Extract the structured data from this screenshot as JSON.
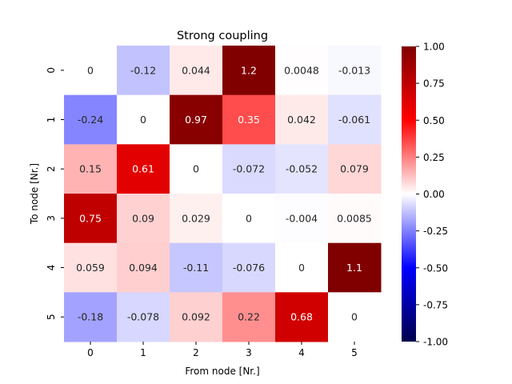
{
  "chart_data": {
    "type": "heatmap",
    "title": "Strong coupling",
    "xlabel": "From node [Nr.]",
    "ylabel": "To node [Nr.]",
    "x_categories": [
      "0",
      "1",
      "2",
      "3",
      "4",
      "5"
    ],
    "y_categories": [
      "0",
      "1",
      "2",
      "3",
      "4",
      "5"
    ],
    "values": [
      [
        0,
        -0.12,
        0.044,
        1.2,
        0.0048,
        -0.013
      ],
      [
        -0.24,
        0,
        0.97,
        0.35,
        0.042,
        -0.061
      ],
      [
        0.15,
        0.61,
        0,
        -0.072,
        -0.052,
        0.079
      ],
      [
        0.75,
        0.09,
        0.029,
        0,
        -0.004,
        0.0085
      ],
      [
        0.059,
        0.094,
        -0.11,
        -0.076,
        0,
        1.1
      ],
      [
        -0.18,
        -0.078,
        0.092,
        0.22,
        0.68,
        0
      ]
    ],
    "value_labels": [
      [
        "0",
        "-0.12",
        "0.044",
        "1.2",
        "0.0048",
        "-0.013"
      ],
      [
        "-0.24",
        "0",
        "0.97",
        "0.35",
        "0.042",
        "-0.061"
      ],
      [
        "0.15",
        "0.61",
        "0",
        "-0.072",
        "-0.052",
        "0.079"
      ],
      [
        "0.75",
        "0.09",
        "0.029",
        "0",
        "-0.004",
        "0.0085"
      ],
      [
        "0.059",
        "0.094",
        "-0.11",
        "-0.076",
        "0",
        "1.1"
      ],
      [
        "-0.18",
        "-0.078",
        "0.092",
        "0.22",
        "0.68",
        "0"
      ]
    ],
    "colormap": "seismic",
    "vmin": -1.0,
    "vmax": 1.0,
    "colorbar_ticks": [
      "-1.00",
      "-0.75",
      "-0.50",
      "-0.25",
      "0.00",
      "0.25",
      "0.50",
      "0.75",
      "1.00"
    ],
    "colors": {
      "low": "#00004d",
      "mid_low": "#0000ff",
      "mid": "#ffffff",
      "mid_high": "#ff0000",
      "high": "#800000"
    }
  }
}
